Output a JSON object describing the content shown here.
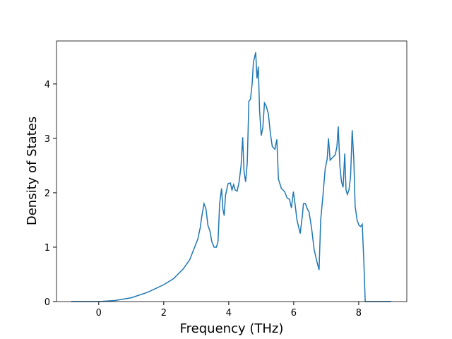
{
  "chart_data": {
    "type": "line",
    "x_label": "Frequency (THz)",
    "y_label": "Density of States",
    "xlim": [
      -1.3,
      9.48
    ],
    "ylim": [
      0,
      4.79
    ],
    "xticks": [
      0,
      2,
      4,
      6,
      8
    ],
    "yticks": [
      0,
      1,
      2,
      3,
      4
    ],
    "series": [
      {
        "color": "#1f77b4",
        "x": [
          -0.85,
          0,
          0.5,
          1,
          1.5,
          2,
          2.3,
          2.6,
          2.8,
          2.95,
          3.05,
          3.12,
          3.18,
          3.24,
          3.3,
          3.36,
          3.42,
          3.48,
          3.55,
          3.62,
          3.67,
          3.72,
          3.78,
          3.82,
          3.86,
          3.9,
          3.98,
          4.05,
          4.1,
          4.15,
          4.2,
          4.26,
          4.32,
          4.38,
          4.43,
          4.47,
          4.52,
          4.57,
          4.62,
          4.67,
          4.72,
          4.76,
          4.83,
          4.87,
          4.91,
          4.95,
          5.0,
          5.05,
          5.1,
          5.15,
          5.22,
          5.28,
          5.34,
          5.42,
          5.48,
          5.53,
          5.62,
          5.72,
          5.8,
          5.87,
          5.93,
          5.99,
          6.04,
          6.1,
          6.2,
          6.27,
          6.3,
          6.36,
          6.42,
          6.47,
          6.55,
          6.63,
          6.72,
          6.78,
          6.83,
          6.9,
          6.97,
          7.03,
          7.07,
          7.12,
          7.2,
          7.28,
          7.33,
          7.37,
          7.42,
          7.47,
          7.52,
          7.57,
          7.61,
          7.65,
          7.7,
          7.75,
          7.8,
          7.85,
          7.89,
          7.95,
          8.01,
          8.06,
          8.11,
          8.16,
          8.2,
          9.0
        ],
        "values": [
          0,
          0,
          0.02,
          0.07,
          0.17,
          0.31,
          0.42,
          0.6,
          0.77,
          1.0,
          1.15,
          1.35,
          1.6,
          1.8,
          1.7,
          1.4,
          1.3,
          1.1,
          1.0,
          1.0,
          1.1,
          1.8,
          2.08,
          1.7,
          1.58,
          1.95,
          2.17,
          2.18,
          2.05,
          2.15,
          2.05,
          2.03,
          2.2,
          2.5,
          3.02,
          2.4,
          2.2,
          2.55,
          3.68,
          3.72,
          4.0,
          4.4,
          4.58,
          4.1,
          4.32,
          3.5,
          3.05,
          3.2,
          3.65,
          3.6,
          3.45,
          3.1,
          2.85,
          2.8,
          2.98,
          2.25,
          2.08,
          2.02,
          1.9,
          1.88,
          1.72,
          2.02,
          1.8,
          1.5,
          1.25,
          1.6,
          1.8,
          1.8,
          1.7,
          1.65,
          1.35,
          0.95,
          0.72,
          0.58,
          1.5,
          1.95,
          2.45,
          2.62,
          3.0,
          2.6,
          2.65,
          2.7,
          2.85,
          3.22,
          2.5,
          2.2,
          2.1,
          2.72,
          2.05,
          1.97,
          2.05,
          2.3,
          3.15,
          2.6,
          1.75,
          1.5,
          1.4,
          1.38,
          1.42,
          0.7,
          0,
          0
        ]
      }
    ]
  }
}
